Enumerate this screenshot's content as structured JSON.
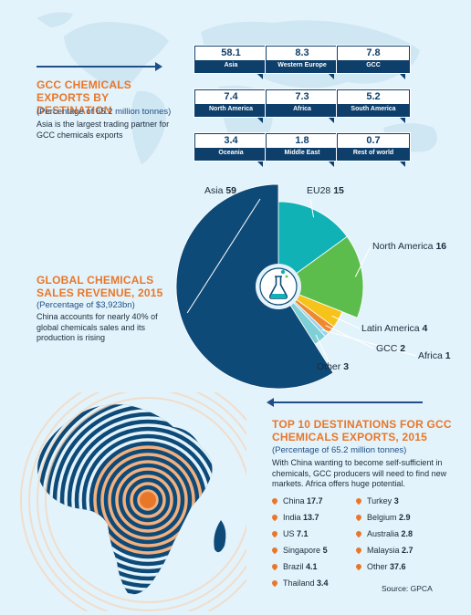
{
  "colors": {
    "title": "#e8772a",
    "navy": "#0e3f6b",
    "accent_blue": "#1f4f86",
    "background": "#e3f3fb"
  },
  "exports": {
    "title": "GCC CHEMICALS EXPORTS BY DESTINATION",
    "subtitle": "(Percentage of 65.2 million tonnes)",
    "description": "Asia is the largest trading partner for GCC chemicals exports",
    "tags": [
      {
        "value": "58.1",
        "name": "Asia"
      },
      {
        "value": "8.3",
        "name": "Western Europe"
      },
      {
        "value": "7.8",
        "name": "GCC"
      },
      {
        "value": "7.4",
        "name": "North America"
      },
      {
        "value": "7.3",
        "name": "Africa"
      },
      {
        "value": "5.2",
        "name": "South America"
      },
      {
        "value": "3.4",
        "name": "Oceania"
      },
      {
        "value": "1.8",
        "name": "Middle East"
      },
      {
        "value": "0.7",
        "name": "Rest of world"
      }
    ]
  },
  "revenue": {
    "title": "GLOBAL CHEMICALS SALES REVENUE, 2015",
    "subtitle": "(Percentage of $3,923bn)",
    "description": "China accounts for nearly 40% of global chemicals sales and its production is rising"
  },
  "chart_data": {
    "type": "pie",
    "slices": [
      {
        "label": "Asia",
        "value": 59,
        "color": "#0e4a78"
      },
      {
        "label": "EU28",
        "value": 15,
        "color": "#11b2b5"
      },
      {
        "label": "North America",
        "value": 16,
        "color": "#5cbd4c"
      },
      {
        "label": "Latin America",
        "value": 4,
        "color": "#f6c31b"
      },
      {
        "label": "GCC",
        "value": 2,
        "color": "#ef8a2c"
      },
      {
        "label": "Africa",
        "value": 1,
        "color": "#9cd3ef"
      },
      {
        "label": "Other",
        "value": 3,
        "color": "#7ecfd6"
      }
    ],
    "slice_order": [
      "EU28",
      "North America",
      "Latin America",
      "GCC",
      "Africa",
      "Other",
      "Asia"
    ]
  },
  "top10": {
    "title": "TOP 10 DESTINATIONS FOR GCC CHEMICALS EXPORTS, 2015",
    "subtitle": "(Percentage of 65.2 million tonnes)",
    "description": "With China wanting to become self-sufficient in chemicals, GCC producers will need to find new markets. Africa offers huge potential.",
    "items": [
      {
        "name": "China",
        "value": "17.7"
      },
      {
        "name": "India",
        "value": "13.7"
      },
      {
        "name": "US",
        "value": "7.1"
      },
      {
        "name": "Singapore",
        "value": "5"
      },
      {
        "name": "Brazil",
        "value": "4.1"
      },
      {
        "name": "Thailand",
        "value": "3.4"
      },
      {
        "name": "Turkey",
        "value": "3"
      },
      {
        "name": "Belgium",
        "value": "2.9"
      },
      {
        "name": "Australia",
        "value": "2.8"
      },
      {
        "name": "Malaysia",
        "value": "2.7"
      },
      {
        "name": "Other",
        "value": "37.6"
      }
    ],
    "source": "Source: GPCA"
  }
}
